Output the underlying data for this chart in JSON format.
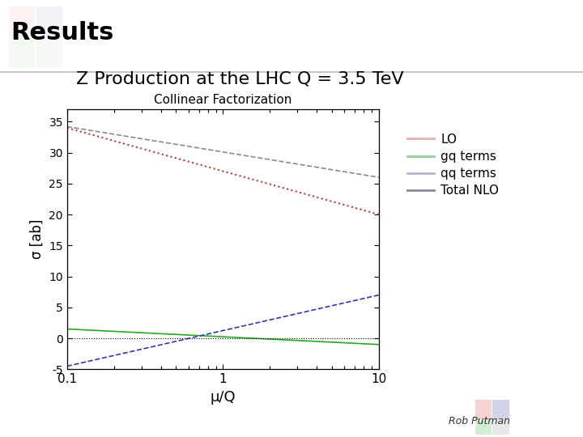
{
  "title_main": "Z Production at the LHC Q = 3.5 TeV",
  "subtitle": "Collinear Factorization",
  "xlabel": "μ/Q",
  "ylabel": "σ [ab]",
  "xscale": "log",
  "xlim": [
    0.1,
    10
  ],
  "ylim": [
    -5,
    37
  ],
  "yticks": [
    -5,
    0,
    5,
    10,
    15,
    20,
    25,
    30,
    35
  ],
  "xticks": [
    0.1,
    1,
    10
  ],
  "background_color": "#ffffff",
  "slide_title": "Results",
  "legend_labels": [
    "LO",
    "gq terms",
    "qq terms",
    "Total NLO"
  ],
  "line_colors": {
    "LO": "#cc3333",
    "gq": "#22aa22",
    "qq": "#888899",
    "total": "#3333bb",
    "zero": "#000000"
  },
  "deco_colors": [
    "#f5c0c0",
    "#c0e8c0",
    "#c0c0e0",
    "#e0e0e0"
  ],
  "header_box_color": "#f5f5f5",
  "watermark_colors": [
    "#f5c0c0",
    "#c0e8c0",
    "#c0c0e0",
    "#e0e0e0"
  ],
  "legend_line_colors": [
    "#e8b0b0",
    "#90d090",
    "#b8b8cc",
    "#888899"
  ],
  "rob_putman_color": "#333333"
}
